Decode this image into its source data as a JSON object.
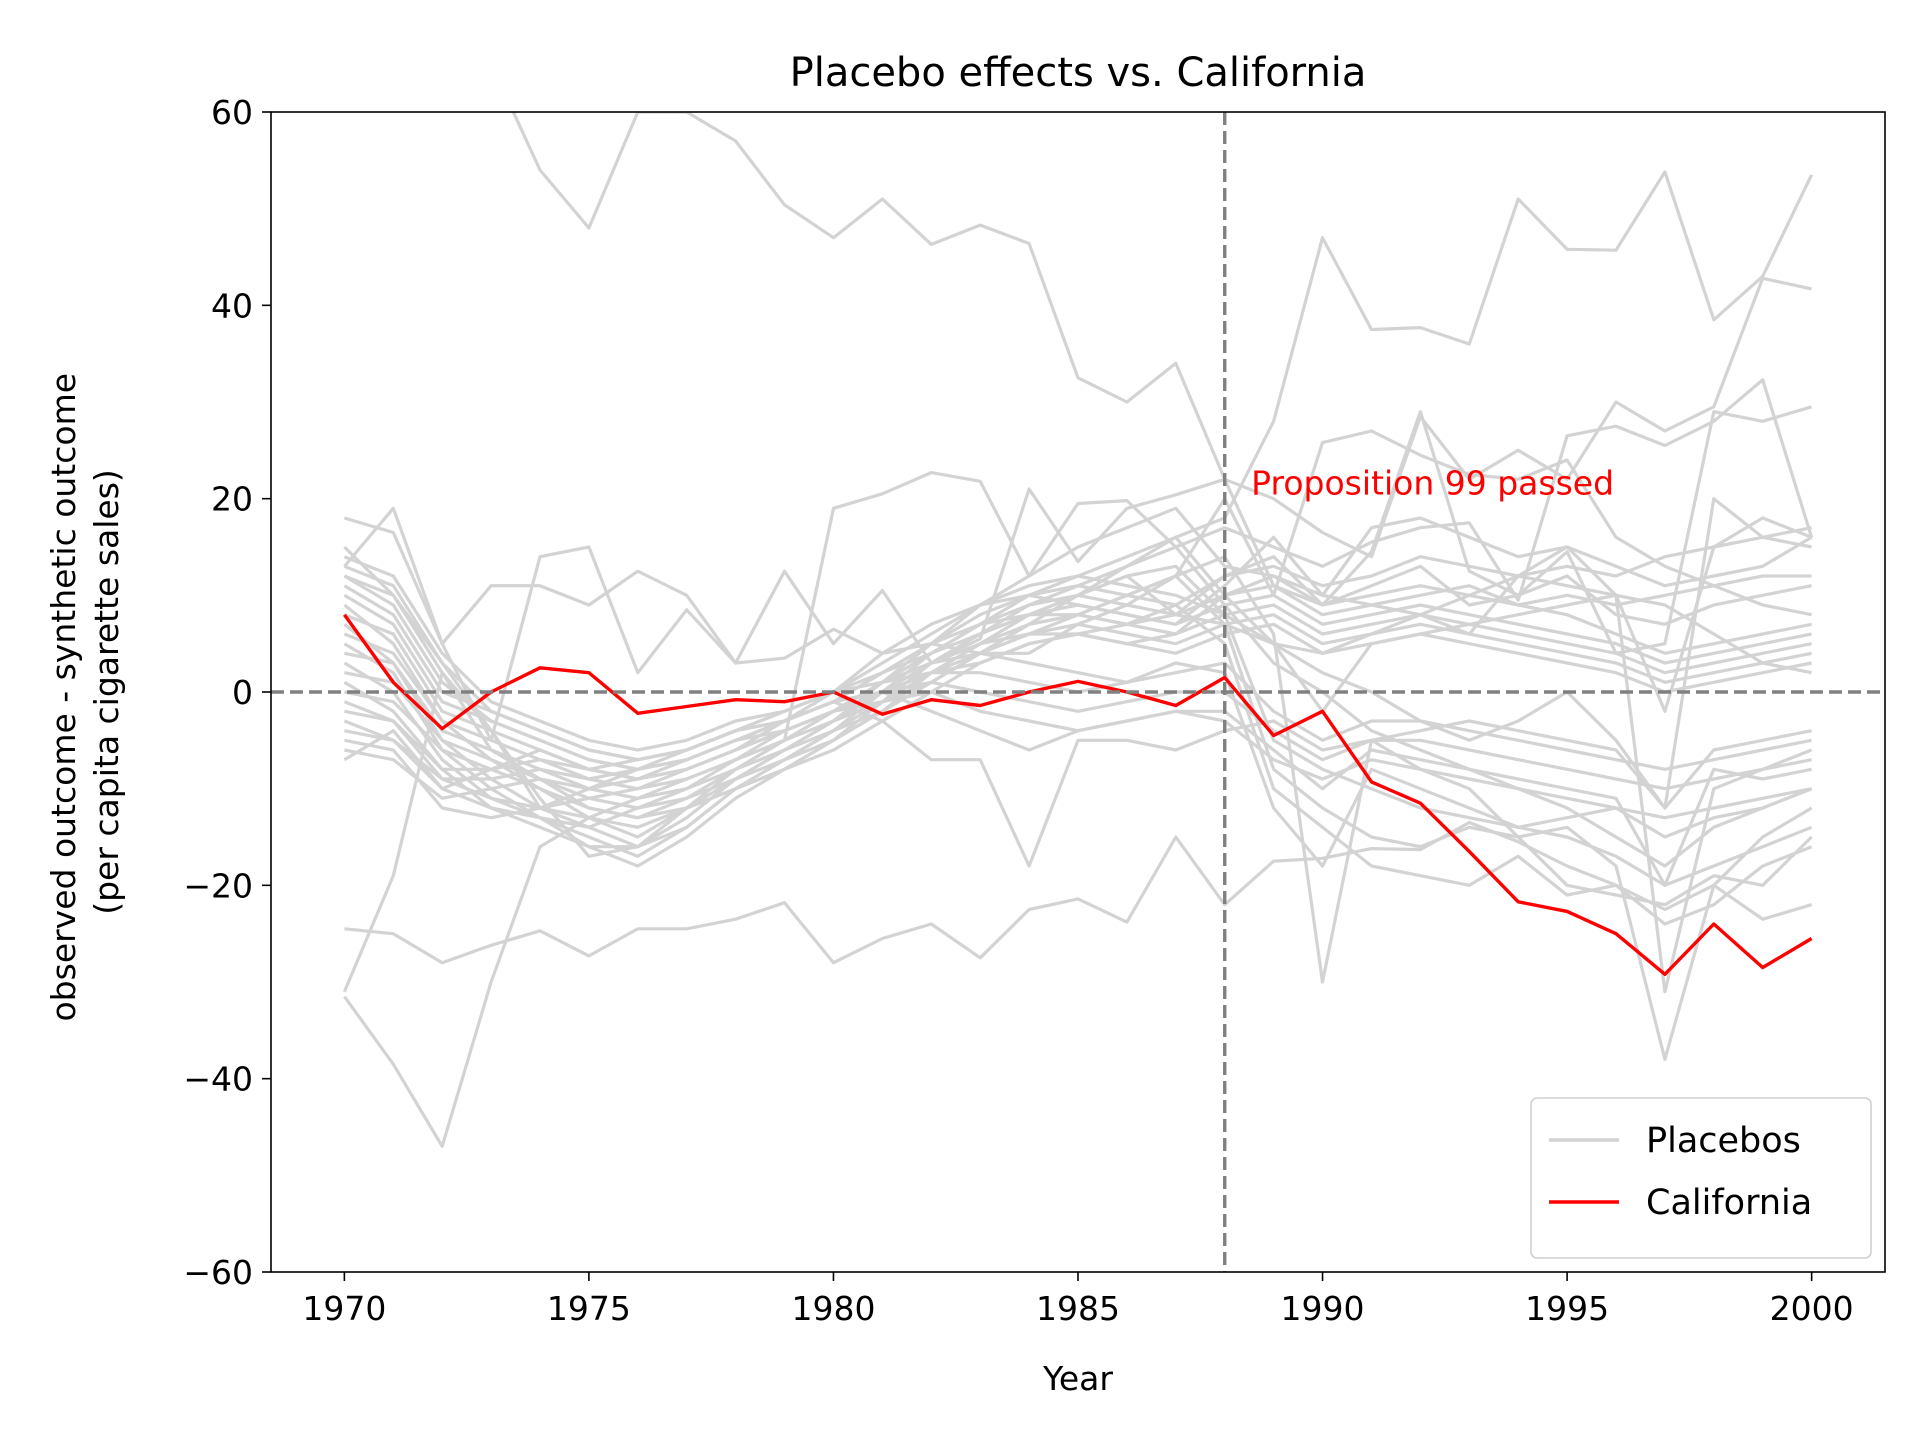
{
  "chart_data": {
    "type": "line",
    "title": "Placebo effects vs. California",
    "xlabel": "Year",
    "ylabel": [
      "observed outcome - synthetic outcome",
      "(per capita cigarette sales)"
    ],
    "xlim": [
      1968.5,
      2001.5
    ],
    "ylim": [
      -60,
      60
    ],
    "xticks": [
      1970,
      1975,
      1980,
      1985,
      1990,
      1995,
      2000
    ],
    "yticks": [
      -60,
      -40,
      -20,
      0,
      20,
      40,
      60
    ],
    "ytick_labels": [
      "−60",
      "−40",
      "−20",
      "0",
      "20",
      "40",
      "60"
    ],
    "grid": false,
    "legend_position": "lower-right",
    "treatment_year": 1988,
    "zero_line": 0,
    "annotation": {
      "text": "Proposition 99 passed",
      "x": 1988.5,
      "y": 20,
      "color": "#ff0000"
    },
    "colors": {
      "placebo": "#d3d3d3",
      "treated": "#ff0000",
      "reference": "#808080"
    },
    "x": [
      1970,
      1971,
      1972,
      1973,
      1974,
      1975,
      1976,
      1977,
      1978,
      1979,
      1980,
      1981,
      1982,
      1983,
      1984,
      1985,
      1986,
      1987,
      1988,
      1989,
      1990,
      1991,
      1992,
      1993,
      1994,
      1995,
      1996,
      1997,
      1998,
      1999,
      2000
    ],
    "series": [
      {
        "name": "California",
        "role": "treated",
        "values": [
          8,
          1,
          -3.8,
          0,
          2.5,
          2,
          -2.2,
          -1.5,
          -0.8,
          -1,
          0,
          -2.3,
          -0.8,
          -1.4,
          0,
          1.1,
          0,
          -1.4,
          1.5,
          -4.5,
          -2,
          -9.3,
          -11.5,
          -16.5,
          -21.7,
          -22.7,
          -25,
          -29.2,
          -24,
          -28.5,
          -25.5
        ]
      },
      {
        "name": "Placebos",
        "role": "placebo",
        "values": [
          -24.5,
          -25,
          -28,
          -26.2,
          -24.7,
          -27.3,
          -24.5,
          -24.5,
          -23.5,
          -21.8,
          -28,
          -25.5,
          -24,
          -27.5,
          -22.5,
          -21.4,
          -23.8,
          -15,
          -22,
          -17.5,
          -17.2,
          -16.2,
          -16.3,
          -13.5,
          -15.5,
          -18,
          -20,
          -22.5,
          -20,
          -23.5,
          -22
        ]
      },
      {
        "role": "placebo",
        "values": [
          -31.5,
          -38.5,
          -47,
          -30,
          -16,
          -13,
          -11,
          -9,
          -7,
          -5,
          -2,
          0,
          2,
          4,
          6,
          8,
          10,
          12,
          14,
          6,
          -30,
          -5,
          -8,
          -10,
          -15,
          -14,
          -18,
          -38,
          -20,
          -15,
          -12
        ]
      },
      {
        "role": "placebo",
        "values": [
          -31,
          -19,
          2,
          -4,
          -12,
          -10,
          -8,
          -6,
          -4,
          -2,
          0,
          2,
          4,
          6,
          8,
          10,
          12,
          8,
          7,
          5,
          -2,
          5,
          6,
          7,
          8,
          9,
          10,
          -31,
          -10,
          -8,
          -6
        ]
      },
      {
        "role": "placebo",
        "values": [
          18,
          16.5,
          5,
          11,
          11,
          9,
          12.5,
          10,
          3,
          3.5,
          6.5,
          4,
          5,
          4,
          4,
          7,
          9,
          12,
          20,
          10,
          25.8,
          27,
          24.5,
          22.5,
          22,
          24,
          16,
          13,
          11,
          9,
          8
        ]
      },
      {
        "role": "placebo",
        "values": [
          15,
          10,
          3,
          -4,
          -11,
          -17,
          -16,
          -12,
          -10,
          -8,
          -5,
          -2,
          1,
          4,
          7,
          10,
          13,
          16,
          18,
          28,
          47,
          37.5,
          37.7,
          36,
          51,
          45.8,
          45.7,
          53.8,
          38.5,
          43,
          53.5
        ]
      },
      {
        "role": "placebo",
        "values": [
          76,
          70,
          66,
          65,
          54,
          48,
          60,
          60,
          57,
          50.4,
          47,
          51,
          46.3,
          48.3,
          46.4,
          32.5,
          30,
          34,
          22,
          20,
          16.5,
          14,
          28.5,
          22,
          25,
          22,
          30,
          27,
          29.5,
          42.8,
          41.7
        ]
      },
      {
        "role": "placebo",
        "values": [
          13,
          19,
          5,
          -5,
          14,
          15,
          2,
          8.5,
          3,
          12.5,
          5,
          10.5,
          3,
          5.5,
          21,
          13.5,
          19,
          20.4,
          22,
          11,
          9,
          14.5,
          29,
          12.5,
          10,
          14.5,
          4,
          5,
          29,
          28,
          29.5
        ]
      },
      {
        "role": "placebo",
        "values": [
          12,
          10,
          2,
          -6,
          -9,
          -12,
          -13,
          -11,
          -8,
          -5,
          19,
          20.5,
          22.7,
          21.8,
          12,
          19.5,
          19.8,
          15,
          17,
          15,
          13,
          15.5,
          17,
          17.5,
          9.5,
          26.5,
          27.5,
          25.5,
          28,
          32.3,
          16
        ]
      },
      {
        "role": "placebo",
        "values": [
          9,
          5,
          -3,
          -7,
          -10,
          -13,
          -15,
          -12,
          -9,
          -6,
          -3,
          1,
          5,
          9,
          12,
          15,
          17,
          19,
          13,
          12,
          10,
          9,
          8,
          6,
          12,
          15,
          10,
          -2,
          15,
          18,
          16
        ]
      },
      {
        "role": "placebo",
        "values": [
          7,
          3,
          -5,
          -9,
          -12,
          -14,
          -16,
          -14,
          -10,
          -7,
          -4,
          0,
          4,
          7,
          10,
          12,
          14,
          16,
          10,
          5,
          2,
          0,
          -3,
          -5,
          -3,
          0,
          -5,
          -12,
          20,
          16,
          15
        ]
      },
      {
        "role": "placebo",
        "values": [
          5,
          2,
          -6,
          -10,
          -13,
          -16,
          -18,
          -15,
          -11,
          -8,
          -5,
          -1,
          3,
          6,
          9,
          11,
          13,
          15,
          9,
          3,
          0,
          -4,
          -6,
          -8,
          -10,
          -12,
          -15,
          -18,
          -14,
          -12,
          -10
        ]
      },
      {
        "role": "placebo",
        "values": [
          3,
          0,
          -7,
          -11,
          -13,
          -15,
          -17,
          -14,
          -10,
          -7,
          -4,
          -2,
          2,
          5,
          8,
          10,
          12,
          13,
          8,
          -5,
          -8,
          -10,
          -12,
          -13,
          -14,
          -15,
          -17,
          -20,
          -18,
          -16,
          -14
        ]
      },
      {
        "role": "placebo",
        "values": [
          1,
          -2,
          -8,
          -12,
          -14,
          -16,
          -16,
          -13,
          -9,
          -6,
          -3,
          -1,
          1,
          4,
          7,
          8,
          10,
          12,
          7,
          -8,
          -12,
          -15,
          -16,
          -14,
          -15,
          -20,
          -21,
          -22,
          -19,
          -20,
          -15
        ]
      },
      {
        "role": "placebo",
        "values": [
          -1,
          -3,
          -9,
          -11,
          -12,
          -13,
          -14,
          -12,
          -8,
          -5,
          -2,
          0,
          2,
          3,
          5,
          6,
          7,
          9,
          5,
          -10,
          -14,
          -18,
          -19,
          -20,
          -17,
          -21,
          -20,
          -24,
          -22,
          -18,
          -16
        ]
      },
      {
        "role": "placebo",
        "values": [
          -3,
          -5,
          -10,
          -12,
          -13,
          -14,
          -12,
          -10,
          -7,
          -4,
          -2,
          1,
          3,
          4,
          3,
          2,
          1,
          3,
          2,
          -12,
          -18,
          -8,
          -10,
          -12,
          -14,
          -13,
          -12,
          -15,
          -13,
          -12,
          -10
        ]
      },
      {
        "role": "placebo",
        "values": [
          -5,
          -6,
          -12,
          -13,
          -12,
          -11,
          -10,
          -8,
          -6,
          -3,
          -1,
          0,
          -2,
          -4,
          -6,
          -4,
          -3,
          -2,
          -2,
          -6,
          -10,
          -6,
          -7,
          -8,
          -9,
          -10,
          -11,
          -20,
          -8,
          -9,
          -8
        ]
      },
      {
        "role": "placebo",
        "values": [
          -7,
          -4,
          -10,
          -8,
          -6,
          -8,
          -9,
          -7,
          -5,
          -3,
          -1,
          -3,
          -7,
          -7,
          -18,
          -5,
          -5,
          -6,
          -4,
          -3,
          -6,
          -5,
          -4,
          -3,
          -4,
          -5,
          -6,
          -12,
          -6,
          -5,
          -4
        ]
      },
      {
        "role": "placebo",
        "values": [
          11,
          8,
          0,
          -2,
          -4,
          -6,
          -7,
          -6,
          -4,
          -3,
          0,
          3,
          6,
          9,
          11,
          12,
          11,
          10,
          8,
          5,
          4,
          6,
          8,
          10,
          12,
          11,
          10,
          9,
          6,
          3,
          2
        ]
      },
      {
        "role": "placebo",
        "values": [
          10,
          7,
          -1,
          -3,
          -5,
          -7,
          -8,
          -7,
          -5,
          -3,
          -1,
          2,
          5,
          8,
          10,
          11,
          10,
          9,
          12,
          14,
          9,
          11,
          13,
          9,
          10,
          12,
          8,
          7,
          9,
          10,
          11
        ]
      },
      {
        "role": "placebo",
        "values": [
          8,
          6,
          -2,
          -4,
          -6,
          -8,
          -9,
          -8,
          -6,
          -4,
          -2,
          1,
          4,
          7,
          9,
          10,
          9,
          8,
          10,
          11,
          8,
          9,
          10,
          11,
          9,
          8,
          6,
          4,
          5,
          6,
          7
        ]
      },
      {
        "role": "placebo",
        "values": [
          6,
          4,
          -3,
          -5,
          -7,
          -9,
          -10,
          -9,
          -7,
          -5,
          -3,
          0,
          3,
          6,
          8,
          9,
          8,
          7,
          9,
          10,
          7,
          8,
          9,
          8,
          7,
          6,
          5,
          3,
          4,
          5,
          6
        ]
      },
      {
        "role": "placebo",
        "values": [
          4,
          3,
          -4,
          -6,
          -8,
          -10,
          -11,
          -10,
          -8,
          -6,
          -4,
          -1,
          2,
          5,
          7,
          8,
          7,
          6,
          8,
          9,
          6,
          7,
          8,
          7,
          6,
          5,
          4,
          2,
          3,
          4,
          5
        ]
      },
      {
        "role": "placebo",
        "values": [
          2,
          1,
          -5,
          -7,
          -9,
          -11,
          -12,
          -11,
          -9,
          -7,
          -5,
          -2,
          1,
          4,
          6,
          7,
          6,
          5,
          7,
          8,
          5,
          6,
          7,
          6,
          5,
          4,
          3,
          1,
          2,
          3,
          4
        ]
      },
      {
        "role": "placebo",
        "values": [
          0,
          -1,
          -6,
          -8,
          -10,
          -12,
          -13,
          -12,
          -10,
          -8,
          -6,
          -3,
          0,
          3,
          5,
          6,
          5,
          4,
          6,
          7,
          4,
          5,
          6,
          5,
          4,
          3,
          2,
          0,
          1,
          2,
          3
        ]
      },
      {
        "role": "placebo",
        "values": [
          14,
          12,
          4,
          -1,
          -3,
          -5,
          -6,
          -5,
          -3,
          -2,
          0,
          4,
          7,
          9,
          10,
          9,
          8,
          7,
          11,
          16,
          10,
          17,
          18,
          16,
          14,
          15,
          13,
          11,
          12,
          13,
          16
        ]
      },
      {
        "role": "placebo",
        "values": [
          13,
          11,
          3,
          -2,
          -4,
          -6,
          -7,
          -6,
          -4,
          -3,
          -1,
          2,
          5,
          7,
          8,
          8,
          7,
          8,
          12,
          13,
          11,
          12,
          14,
          13,
          12,
          13,
          12,
          14,
          15,
          16,
          17
        ]
      },
      {
        "role": "placebo",
        "values": [
          12,
          9,
          1,
          -3,
          -5,
          -7,
          -8,
          -7,
          -5,
          -4,
          -2,
          1,
          3,
          5,
          6,
          6,
          5,
          6,
          10,
          12,
          9,
          10,
          11,
          10,
          9,
          10,
          9,
          10,
          11,
          12,
          12
        ]
      },
      {
        "role": "placebo",
        "values": [
          -6,
          -7,
          -11,
          -10,
          -9,
          -10,
          -9,
          -8,
          -6,
          -4,
          -2,
          -1,
          0,
          -2,
          -3,
          -4,
          -3,
          -2,
          -3,
          -7,
          -9,
          -7,
          -8,
          -9,
          -10,
          -11,
          -12,
          -13,
          -12,
          -11,
          -10
        ]
      },
      {
        "role": "placebo",
        "values": [
          -4,
          -5,
          -9,
          -9,
          -8,
          -9,
          -8,
          -7,
          -5,
          -3,
          -1,
          0,
          1,
          0,
          -1,
          -2,
          -1,
          0,
          0,
          -4,
          -7,
          -5,
          -5,
          -6,
          -7,
          -8,
          -9,
          -10,
          -9,
          -8,
          -7
        ]
      },
      {
        "role": "placebo",
        "values": [
          -2,
          -3,
          -8,
          -8,
          -7,
          -8,
          -7,
          -6,
          -4,
          -2,
          0,
          1,
          2,
          2,
          1,
          0,
          1,
          2,
          3,
          -2,
          -5,
          -3,
          -3,
          -4,
          -5,
          -6,
          -7,
          -8,
          -7,
          -6,
          -5
        ]
      }
    ],
    "legend": [
      {
        "label": "Placebos",
        "color": "#d3d3d3"
      },
      {
        "label": "California",
        "color": "#ff0000"
      }
    ]
  }
}
